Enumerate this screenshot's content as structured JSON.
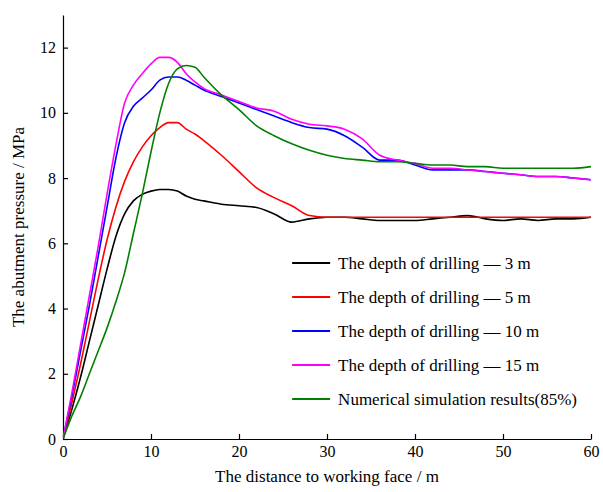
{
  "chart_data": {
    "type": "line",
    "xlabel": "The distance to working face / m",
    "ylabel": "The abutment pressure / MPa",
    "x": [
      0,
      1,
      2,
      3,
      4,
      5,
      6,
      7,
      8,
      9,
      10,
      11,
      12,
      13,
      14,
      15,
      16,
      18,
      20,
      22,
      24,
      26,
      28,
      30,
      32,
      34,
      36,
      38,
      40,
      42,
      44,
      46,
      48,
      50,
      52,
      54,
      56,
      58,
      60
    ],
    "xlim": [
      0,
      60
    ],
    "xticks": [
      0,
      10,
      20,
      30,
      40,
      50,
      60
    ],
    "ylim": [
      0,
      13
    ],
    "yticks": [
      0,
      2,
      4,
      6,
      8,
      10,
      12
    ],
    "legend": "lower right",
    "series": [
      {
        "name": "The depth of drilling — 3 m",
        "color": "#000000",
        "values": [
          0,
          0.9,
          1.9,
          3.0,
          4.1,
          5.2,
          6.2,
          6.9,
          7.3,
          7.5,
          7.6,
          7.65,
          7.65,
          7.6,
          7.45,
          7.35,
          7.3,
          7.2,
          7.15,
          7.1,
          6.9,
          6.65,
          6.75,
          6.8,
          6.8,
          6.75,
          6.7,
          6.7,
          6.7,
          6.75,
          6.8,
          6.85,
          6.75,
          6.7,
          6.75,
          6.7,
          6.75,
          6.75,
          6.8
        ]
      },
      {
        "name": "The depth of drilling — 5 m",
        "color": "#ff0000",
        "values": [
          0,
          1.1,
          2.3,
          3.6,
          4.9,
          6.1,
          7.1,
          7.9,
          8.5,
          8.95,
          9.3,
          9.55,
          9.7,
          9.7,
          9.5,
          9.35,
          9.15,
          8.7,
          8.2,
          7.7,
          7.4,
          7.15,
          6.85,
          6.8,
          6.8,
          6.8,
          6.8,
          6.8,
          6.8,
          6.8,
          6.8,
          6.8,
          6.8,
          6.8,
          6.8,
          6.8,
          6.8,
          6.8,
          6.8
        ]
      },
      {
        "name": "The depth of drilling — 10 m",
        "color": "#0000ff",
        "values": [
          0,
          1.3,
          2.7,
          4.1,
          5.6,
          7.1,
          8.6,
          9.7,
          10.2,
          10.45,
          10.7,
          11.0,
          11.1,
          11.1,
          11.0,
          10.85,
          10.7,
          10.5,
          10.3,
          10.1,
          9.9,
          9.7,
          9.55,
          9.5,
          9.3,
          8.95,
          8.55,
          8.55,
          8.4,
          8.25,
          8.25,
          8.25,
          8.2,
          8.15,
          8.1,
          8.05,
          8.05,
          8.0,
          7.95
        ]
      },
      {
        "name": "The depth of drilling — 15 m",
        "color": "#ff00ff",
        "values": [
          0,
          1.4,
          2.9,
          4.4,
          5.9,
          7.5,
          9.0,
          10.3,
          10.85,
          11.2,
          11.5,
          11.7,
          11.7,
          11.55,
          11.2,
          10.95,
          10.75,
          10.55,
          10.35,
          10.15,
          10.05,
          9.8,
          9.65,
          9.6,
          9.5,
          9.2,
          8.7,
          8.55,
          8.45,
          8.3,
          8.3,
          8.25,
          8.2,
          8.15,
          8.1,
          8.05,
          8.05,
          8.0,
          7.95
        ]
      },
      {
        "name": "Numerical simulation results(85%)",
        "color": "#008000",
        "values": [
          0,
          0.7,
          1.3,
          2.0,
          2.7,
          3.4,
          4.2,
          5.1,
          6.3,
          7.5,
          8.8,
          10.0,
          10.9,
          11.35,
          11.45,
          11.4,
          11.1,
          10.55,
          10.1,
          9.6,
          9.3,
          9.05,
          8.85,
          8.7,
          8.6,
          8.55,
          8.5,
          8.5,
          8.45,
          8.4,
          8.4,
          8.35,
          8.35,
          8.3,
          8.3,
          8.3,
          8.3,
          8.3,
          8.35
        ]
      }
    ]
  }
}
